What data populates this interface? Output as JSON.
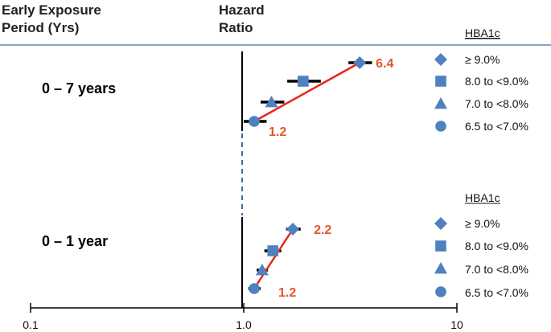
{
  "headers": {
    "col1_line1": "Early Exposure",
    "col1_line2": "Period (Yrs)",
    "col2_line1": "Hazard",
    "col2_line2": "Ratio"
  },
  "colors": {
    "marker": "#4f81bd",
    "line": "#e8251c",
    "label": "#e0572b",
    "separator": "#5b87b5",
    "refline": "#000000",
    "dashed": "#3c6fa8"
  },
  "chart_data": {
    "type": "scatter",
    "x_scale": "log",
    "xlim": [
      0.1,
      10
    ],
    "x_ticks": [
      "0.1",
      "1.0",
      "10"
    ],
    "reference_line": 1.0,
    "panels": [
      {
        "label": "0 – 7 years",
        "legend_title": "HBA1c",
        "series": [
          {
            "name": "≥ 9.0%",
            "marker": "diamond",
            "hr": 3.5,
            "ci": [
              3.1,
              4.0
            ]
          },
          {
            "name": "8.0 to <9.0%",
            "marker": "square",
            "hr": 1.9,
            "ci": [
              1.6,
              2.3
            ]
          },
          {
            "name": "7.0 to <8.0%",
            "marker": "triangle",
            "hr": 1.35,
            "ci": [
              1.2,
              1.55
            ]
          },
          {
            "name": "6.5 to <7.0%",
            "marker": "circle",
            "hr": 1.12,
            "ci": [
              1.0,
              1.28
            ]
          }
        ],
        "annotations": {
          "high": "6.4",
          "low": "1.2"
        }
      },
      {
        "label": "0 – 1 year",
        "legend_title": "HBA1c",
        "series": [
          {
            "name": "≥ 9.0%",
            "marker": "diamond",
            "hr": 1.7,
            "ci": [
              1.58,
              1.85
            ]
          },
          {
            "name": "8.0 to <9.0%",
            "marker": "square",
            "hr": 1.37,
            "ci": [
              1.25,
              1.5
            ]
          },
          {
            "name": "7.0 to <8.0%",
            "marker": "triangle",
            "hr": 1.22,
            "ci": [
              1.15,
              1.3
            ]
          },
          {
            "name": "6.5 to <7.0%",
            "marker": "circle",
            "hr": 1.12,
            "ci": [
              1.05,
              1.2
            ]
          }
        ],
        "annotations": {
          "high": "2.2",
          "low": "1.2"
        }
      }
    ]
  }
}
